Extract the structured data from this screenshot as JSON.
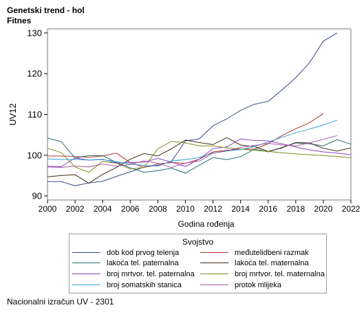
{
  "header": {
    "title": "Genetski trend - hol",
    "subtitle": "Fitnes"
  },
  "footer": {
    "text": "Nacionalni izračun UV - 2301"
  },
  "legend": {
    "title": "Svojstvo"
  },
  "chart_data": {
    "type": "line",
    "title": "Genetski trend - hol",
    "subtitle": "Fitnes",
    "xlabel": "Godina rođenja",
    "ylabel": "UV12",
    "xlim": [
      2000,
      2022
    ],
    "ylim": [
      89,
      131
    ],
    "xticks": [
      2000,
      2002,
      2004,
      2006,
      2008,
      2010,
      2012,
      2014,
      2016,
      2018,
      2020,
      2022
    ],
    "yticks": [
      90,
      100,
      110,
      120,
      130
    ],
    "grid": false,
    "legend_position": "bottom",
    "series": [
      {
        "name": "dob kod prvog telenja",
        "color": "#3b4a8c",
        "x": [
          2000,
          2001,
          2002,
          2003,
          2004,
          2005,
          2006,
          2007,
          2008,
          2009,
          2010,
          2011,
          2012,
          2013,
          2014,
          2015,
          2016,
          2017,
          2018,
          2019,
          2020,
          2021
        ],
        "y": [
          93.5,
          93.5,
          92.5,
          93.2,
          93.6,
          94.8,
          95.9,
          97.1,
          97.5,
          98.5,
          103.5,
          104.0,
          107.2,
          108.9,
          111.0,
          112.5,
          113.2,
          116.0,
          119.0,
          122.7,
          128.0,
          130.0
        ]
      },
      {
        "name": "međutelidbeni razmak",
        "color": "#b3312c",
        "x": [
          2000,
          2001,
          2002,
          2003,
          2004,
          2005,
          2006,
          2007,
          2008,
          2009,
          2010,
          2011,
          2012,
          2013,
          2014,
          2015,
          2016,
          2017,
          2018,
          2019,
          2020
        ],
        "y": [
          99.8,
          99.8,
          99.7,
          99.5,
          99.8,
          100.5,
          98.2,
          97.0,
          97.8,
          98.2,
          98.0,
          99.0,
          100.8,
          101.2,
          101.5,
          101.5,
          102.8,
          104.8,
          106.5,
          108.0,
          110.2
        ]
      },
      {
        "name": "lakoća tel. paternalna",
        "color": "#1f6e6e",
        "x": [
          2000,
          2001,
          2002,
          2003,
          2004,
          2005,
          2006,
          2007,
          2008,
          2009,
          2010,
          2011,
          2012,
          2013,
          2014,
          2015,
          2016,
          2017,
          2018,
          2019,
          2020,
          2021,
          2022
        ],
        "y": [
          104.2,
          103.3,
          99.3,
          99.9,
          99.9,
          98.2,
          96.9,
          95.8,
          96.2,
          96.8,
          95.6,
          97.5,
          99.4,
          98.9,
          99.6,
          101.5,
          100.8,
          101.9,
          103.0,
          102.8,
          102.3,
          103.8,
          102.7
        ]
      },
      {
        "name": "lakoća tel. maternalna",
        "color": "#3d2a14",
        "x": [
          2000,
          2001,
          2002,
          2003,
          2004,
          2005,
          2006,
          2007,
          2008,
          2009,
          2010,
          2011,
          2012,
          2013,
          2014,
          2015,
          2016,
          2017,
          2018,
          2019,
          2020,
          2021,
          2022
        ],
        "y": [
          94.7,
          95.0,
          95.2,
          93.1,
          95.3,
          97.0,
          99.0,
          100.4,
          99.8,
          101.6,
          103.7,
          103.1,
          102.6,
          104.3,
          102.5,
          102.1,
          100.9,
          101.8,
          103.1,
          103.0,
          101.7,
          101.0,
          101.8
        ]
      },
      {
        "name": "broj mrtvor. tel. paternalna",
        "color": "#8e3fbf",
        "x": [
          2000,
          2001,
          2002,
          2003,
          2004,
          2005,
          2006,
          2007,
          2008,
          2009,
          2010,
          2011,
          2012,
          2013,
          2014,
          2015,
          2016,
          2017,
          2018,
          2019,
          2020,
          2021,
          2022
        ],
        "y": [
          97.3,
          97.2,
          99.3,
          98.8,
          99.0,
          98.1,
          98.2,
          98.3,
          99.2,
          98.3,
          97.2,
          99.0,
          101.6,
          102.0,
          104.0,
          103.6,
          103.5,
          102.8,
          102.0,
          101.3,
          100.8,
          100.5,
          100.1
        ]
      },
      {
        "name": "broj mrtvor. tel. maternalna",
        "color": "#828a1c",
        "x": [
          2000,
          2001,
          2002,
          2003,
          2004,
          2005,
          2006,
          2007,
          2008,
          2009,
          2010,
          2011,
          2012,
          2013,
          2014,
          2015,
          2016,
          2017,
          2018,
          2019,
          2020,
          2021,
          2022
        ],
        "y": [
          101.7,
          100.6,
          97.1,
          95.8,
          98.5,
          98.0,
          96.6,
          97.0,
          101.6,
          103.4,
          103.0,
          102.3,
          102.3,
          101.8,
          101.5,
          101.2,
          100.9,
          100.6,
          100.3,
          100.1,
          99.9,
          99.7,
          99.3
        ]
      },
      {
        "name": "broj somatskih stanica",
        "color": "#2f9fd6",
        "x": [
          2000,
          2001,
          2002,
          2003,
          2004,
          2005,
          2006,
          2007,
          2008,
          2009,
          2010,
          2011,
          2012,
          2013,
          2014,
          2015,
          2016,
          2017,
          2018,
          2019,
          2020,
          2021
        ],
        "y": [
          99.1,
          98.9,
          99.0,
          98.8,
          98.9,
          98.4,
          97.8,
          97.5,
          97.3,
          98.6,
          98.9,
          99.4,
          100.5,
          101.0,
          101.4,
          102.1,
          103.2,
          104.4,
          105.5,
          106.4,
          107.4,
          108.6
        ]
      },
      {
        "name": "protok mlijeka",
        "color": "#a85aa5",
        "x": [
          2000,
          2001,
          2002,
          2003,
          2004,
          2005,
          2006,
          2007,
          2008,
          2009,
          2010,
          2011,
          2012,
          2013,
          2014,
          2015,
          2016,
          2017,
          2018,
          2019,
          2020,
          2021
        ],
        "y": [
          97.1,
          97.0,
          97.3,
          97.1,
          97.8,
          97.3,
          97.7,
          98.6,
          98.0,
          97.0,
          98.1,
          98.5,
          100.5,
          101.1,
          101.9,
          102.4,
          102.9,
          102.5,
          102.3,
          103.0,
          103.9,
          104.8
        ]
      }
    ]
  }
}
